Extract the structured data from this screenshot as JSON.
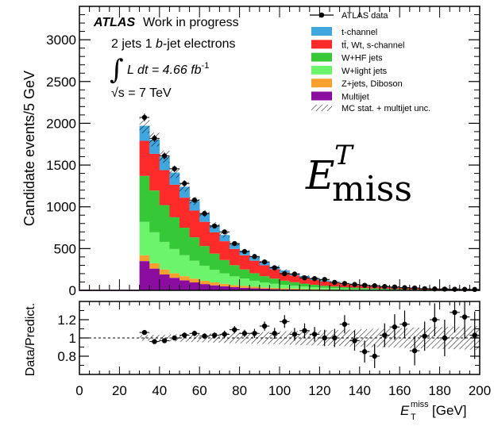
{
  "chart_data": {
    "type": "bar",
    "stacked": true,
    "title": "",
    "header": {
      "atlas": "ATLAS",
      "status": "Work in progress",
      "selection_prefix": "2 jets 1 ",
      "selection_b": "b",
      "selection_suffix": "-jet electrons",
      "lumi_prefix": "L dt = 4.66 fb",
      "lumi_exp": "-1",
      "energy": "√s = 7 TeV"
    },
    "observable_label": {
      "base": "E",
      "super": "T",
      "sub": "miss"
    },
    "main_panel": {
      "ylabel": "Candidate events/5 GeV",
      "ylim": [
        0,
        3400
      ],
      "yticks": [
        "0",
        "500",
        "1000",
        "1500",
        "2000",
        "2500",
        "3000"
      ]
    },
    "ratio_panel": {
      "ylabel": "Data/Predict.",
      "ylim": [
        0.6,
        1.4
      ],
      "yticks": [
        "0.8",
        "1",
        "1.2"
      ],
      "reference_line": 1.0
    },
    "xaxis": {
      "xlabel_base": "E",
      "xlabel_sup": "miss",
      "xlabel_sub": "T",
      "xlabel_unit": "[GeV]",
      "xlim": [
        0,
        200
      ],
      "xticks": [
        "0",
        "20",
        "40",
        "60",
        "80",
        "100",
        "120",
        "140",
        "160",
        "180",
        "200"
      ]
    },
    "legend": {
      "placement": "top-right",
      "data_label": "ATLAS data",
      "unc_label": "MC stat. + multijet unc."
    },
    "bin_edges_gev": [
      30,
      35,
      40,
      45,
      50,
      55,
      60,
      65,
      70,
      75,
      80,
      85,
      90,
      95,
      100,
      105,
      110,
      115,
      120,
      125,
      130,
      135,
      140,
      145,
      150,
      155,
      160,
      165,
      170,
      175,
      180,
      185,
      190,
      195,
      200
    ],
    "series": [
      {
        "key": "multijet",
        "name": "Multijet",
        "color": "#8b0da0",
        "values": [
          350,
          260,
          190,
          150,
          120,
          95,
          75,
          60,
          48,
          38,
          30,
          24,
          19,
          15,
          12,
          10,
          8,
          6,
          5,
          4,
          3,
          3,
          2,
          2,
          2,
          1,
          1,
          1,
          1,
          1,
          1,
          1,
          1,
          1
        ]
      },
      {
        "key": "zdiboson",
        "name": "Z+jets, Diboson",
        "color": "#f7a030",
        "values": [
          70,
          65,
          60,
          55,
          50,
          45,
          40,
          35,
          30,
          25,
          22,
          19,
          16,
          14,
          12,
          10,
          8,
          7,
          6,
          5,
          4,
          4,
          3,
          3,
          2,
          2,
          2,
          2,
          1,
          1,
          1,
          1,
          1,
          1
        ]
      },
      {
        "key": "wlight",
        "name": "W+light jets",
        "color": "#6cf56c",
        "values": [
          400,
          370,
          330,
          290,
          250,
          215,
          180,
          150,
          125,
          105,
          88,
          72,
          60,
          50,
          42,
          35,
          29,
          24,
          20,
          17,
          14,
          12,
          10,
          8,
          7,
          6,
          5,
          4,
          3,
          3,
          2,
          2,
          2,
          2
        ]
      },
      {
        "key": "whf",
        "name": "W+HF jets",
        "color": "#37c837",
        "values": [
          550,
          500,
          440,
          380,
          330,
          280,
          235,
          195,
          160,
          133,
          110,
          90,
          74,
          61,
          50,
          42,
          35,
          29,
          24,
          20,
          17,
          14,
          12,
          10,
          8,
          7,
          6,
          5,
          4,
          3,
          3,
          2,
          2,
          2
        ]
      },
      {
        "key": "ttbar",
        "name": "tt̄, Wt, s-channel",
        "color": "#ff2b2b",
        "values": [
          420,
          440,
          420,
          390,
          360,
          320,
          290,
          255,
          225,
          195,
          170,
          150,
          130,
          112,
          95,
          82,
          70,
          60,
          51,
          43,
          37,
          31,
          26,
          22,
          19,
          16,
          14,
          12,
          10,
          8,
          7,
          6,
          5,
          4
        ]
      },
      {
        "key": "tchannel",
        "name": "t-channel",
        "color": "#3fa6de",
        "values": [
          180,
          170,
          160,
          145,
          130,
          115,
          100,
          87,
          75,
          64,
          55,
          47,
          40,
          34,
          29,
          25,
          21,
          18,
          15,
          13,
          11,
          9,
          8,
          7,
          6,
          5,
          4,
          3,
          3,
          2,
          2,
          2,
          2,
          1
        ]
      }
    ],
    "data_points": [
      2070,
      1820,
      1610,
      1455,
      1280,
      1080,
      920,
      770,
      700,
      560,
      465,
      405,
      340,
      270,
      200,
      195,
      150,
      140,
      130,
      95,
      82,
      70,
      60,
      55,
      45,
      40,
      32,
      28,
      20,
      17,
      15,
      13,
      12,
      11
    ],
    "ratio_points": [
      1.06,
      0.96,
      0.97,
      1.0,
      1.03,
      1.05,
      1.02,
      1.03,
      1.04,
      1.09,
      1.05,
      1.05,
      1.13,
      1.05,
      1.18,
      1.04,
      1.08,
      1.04,
      1.0,
      1.0,
      1.15,
      0.97,
      0.85,
      0.8,
      1.03,
      1.12,
      1.15,
      0.86,
      1.02,
      1.2,
      1.0,
      1.28,
      1.23,
      1.03
    ],
    "ratio_errors": [
      0.02,
      0.02,
      0.02,
      0.02,
      0.03,
      0.03,
      0.03,
      0.03,
      0.04,
      0.04,
      0.04,
      0.05,
      0.05,
      0.06,
      0.07,
      0.07,
      0.08,
      0.08,
      0.09,
      0.1,
      0.1,
      0.11,
      0.12,
      0.13,
      0.13,
      0.14,
      0.15,
      0.16,
      0.16,
      0.18,
      0.2,
      0.22,
      0.24,
      0.26
    ]
  }
}
